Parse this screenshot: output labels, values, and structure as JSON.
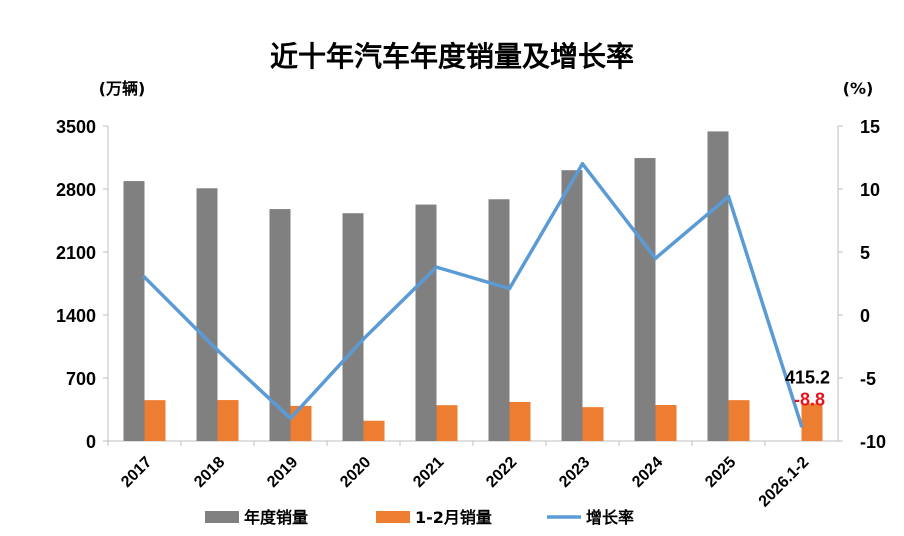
{
  "chart_data": {
    "type": "bar",
    "title": "近十年汽车年度销量及增长率",
    "left_unit": "(万辆)",
    "right_unit": "(%)",
    "categories": [
      "2017",
      "2018",
      "2019",
      "2020",
      "2021",
      "2022",
      "2023",
      "2024",
      "2025",
      "2026.1-2"
    ],
    "series": [
      {
        "name": "年度销量",
        "type": "bar",
        "axis": "left",
        "color": "#808080",
        "values": [
          2888,
          2808,
          2577,
          2531,
          2627,
          2686,
          3009,
          3144,
          3440,
          null
        ]
      },
      {
        "name": "1-2月销量",
        "type": "bar",
        "axis": "left",
        "color": "#ed7d31",
        "values": [
          454,
          455,
          390,
          225,
          398,
          434,
          376,
          400,
          454,
          415.2
        ]
      },
      {
        "name": "增长率",
        "type": "line",
        "axis": "right",
        "color": "#5b9bd5",
        "values": [
          3.0,
          -2.8,
          -8.2,
          -1.9,
          3.8,
          2.1,
          12.0,
          4.5,
          9.4,
          -8.8
        ]
      }
    ],
    "y_left": {
      "min": 0,
      "max": 3500,
      "ticks": [
        0,
        700,
        1400,
        2100,
        2800,
        3500
      ]
    },
    "y_right": {
      "min": -10,
      "max": 15,
      "ticks": [
        -10,
        -5,
        0,
        5,
        10,
        15
      ]
    },
    "data_labels": {
      "bar_last": "415.2",
      "rate_last": "-8.8"
    },
    "legend_position": "bottom",
    "grid": false
  }
}
